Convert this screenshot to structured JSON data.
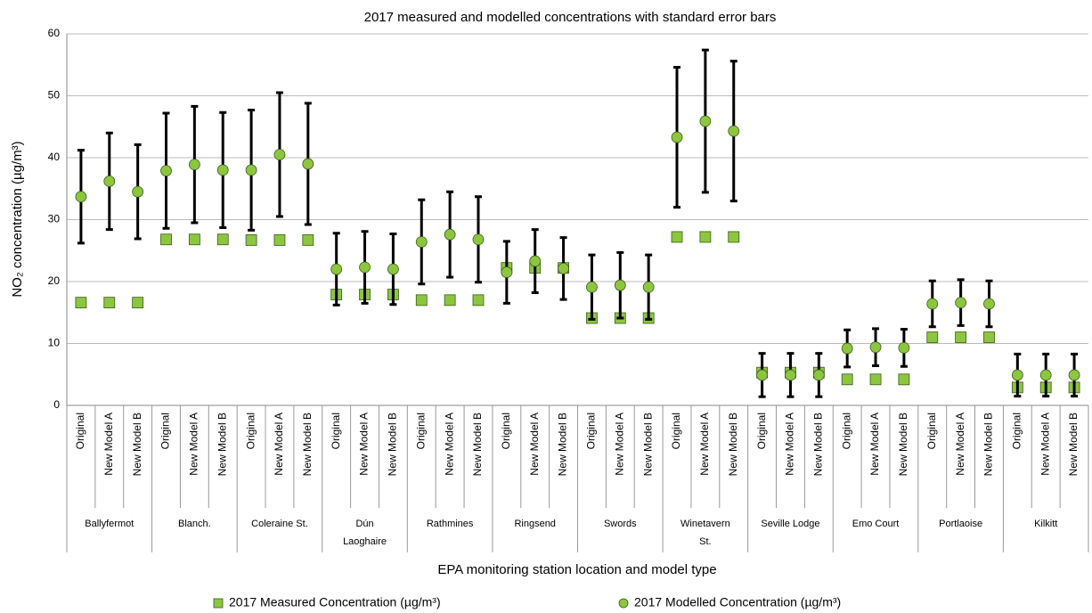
{
  "chart_data": {
    "type": "errorbar",
    "title": "2017 measured and modelled concentrations with standard error bars",
    "y_label": "NO₂ concentration (µg/m³)",
    "x_label": "EPA monitoring station location and model type",
    "categories": [
      "Original",
      "New Model A",
      "New Model B",
      "Original",
      "New Model A",
      "New Model B",
      "Original",
      "New Model A",
      "New Model B",
      "Original",
      "New Model A",
      "New Model B",
      "Original",
      "New Model A",
      "New Model B",
      "Original",
      "New Model A",
      "New Model B",
      "Original",
      "New Model A",
      "New Model B",
      "Original",
      "New Model A",
      "New Model B",
      "Original",
      "New Model A",
      "New Model B",
      "Original",
      "New Model A",
      "New Model B",
      "Original",
      "New Model A",
      "New Model B",
      "Original",
      "New Model A",
      "New Model B"
    ],
    "groups": [
      [
        "Ballyfermot"
      ],
      [
        "Blanch."
      ],
      [
        "Coleraine St."
      ],
      [
        "Dún",
        "Laoghaire"
      ],
      [
        "Rathmines"
      ],
      [
        "Ringsend"
      ],
      [
        "Swords"
      ],
      [
        "Winetavern",
        "St."
      ],
      [
        "Seville Lodge"
      ],
      [
        "Emo Court"
      ],
      [
        "Portlaoise"
      ],
      [
        "Kilkitt"
      ]
    ],
    "series": [
      {
        "name": "2017 Measured Concentration (µg/m³)",
        "marker": "square",
        "color": "#8cc63f",
        "values": [
          16.6,
          16.6,
          16.6,
          26.8,
          26.8,
          26.8,
          26.7,
          26.7,
          26.7,
          17.9,
          17.9,
          17.9,
          17.0,
          17.0,
          17.0,
          22.2,
          22.2,
          22.2,
          14.1,
          14.1,
          14.1,
          27.2,
          27.2,
          27.2,
          5.3,
          5.3,
          5.3,
          4.2,
          4.2,
          4.2,
          11.0,
          11.0,
          11.0,
          2.9,
          2.9,
          2.9
        ]
      },
      {
        "name": "2017 Modelled Concentration (µg/m³)",
        "marker": "circle",
        "color": "#8cc63f",
        "values": [
          33.7,
          36.2,
          34.5,
          37.9,
          38.9,
          38.0,
          38.0,
          40.5,
          39.0,
          22.0,
          22.3,
          22.0,
          26.4,
          27.6,
          26.8,
          21.5,
          23.3,
          22.1,
          19.1,
          19.4,
          19.1,
          43.3,
          45.9,
          44.3,
          4.9,
          4.9,
          4.9,
          9.2,
          9.4,
          9.3,
          16.4,
          16.6,
          16.4,
          4.9,
          4.9,
          4.9
        ],
        "errors": [
          7.5,
          7.8,
          7.6,
          9.3,
          9.4,
          9.3,
          9.7,
          10.0,
          9.8,
          5.8,
          5.8,
          5.7,
          6.8,
          6.9,
          6.9,
          5.0,
          5.1,
          5.0,
          5.2,
          5.3,
          5.2,
          11.3,
          11.5,
          11.3,
          3.5,
          3.5,
          3.5,
          3.0,
          3.0,
          3.0,
          3.7,
          3.7,
          3.7,
          3.4,
          3.4,
          3.4
        ]
      }
    ],
    "ylim": [
      0,
      60
    ],
    "yticks": [
      0,
      10,
      20,
      30,
      40,
      50,
      60
    ],
    "grid": true,
    "legend": "bottom"
  }
}
